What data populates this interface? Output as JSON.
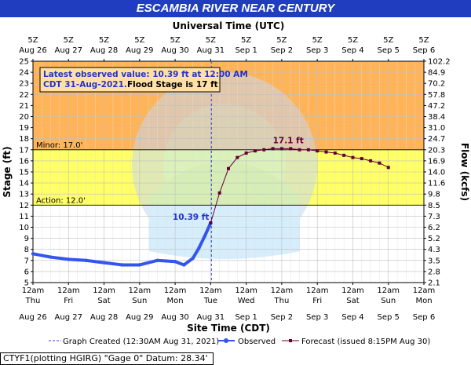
{
  "page_title": "ESCAMBIA RIVER NEAR CENTURY",
  "utc_axis_title": "Universal Time (UTC)",
  "site_axis_title": "Site Time (CDT)",
  "ylabel_left": "Stage (ft)",
  "ylabel_right": "Flow (kcfs)",
  "info_box": {
    "observed_line1": "Latest observed value: 10.39 ft at 12:00 AM",
    "observed_line2": "CDT 31-Aug-2021.",
    "flood_stage": "Flood Stage is 17 ft"
  },
  "stage_bands": {
    "minor_label": "Minor: 17.0'",
    "action_label": "Action: 12.0'",
    "minor_stage": 17,
    "action_stage": 12,
    "moderate_color": "#ffb45a",
    "minor_color": "#ffff66",
    "action_color": "#ffffff"
  },
  "legend": {
    "created": "Graph Created (12:30AM Aug 31, 2021)",
    "observed": "Observed",
    "forecast": "Forecast (issued 8:15PM Aug 30)"
  },
  "footer": "CTYF1(plotting HGIRG) \"Gage 0\" Datum: 28.34'",
  "colors": {
    "title_bar": "#1f3dbe",
    "observed": "#3355ee",
    "forecast": "#660033"
  },
  "chart_data": {
    "type": "line",
    "xlim": [
      "2021-08-26T00:00 CDT",
      "2021-09-06T00:00 CDT"
    ],
    "ylim": [
      5,
      25
    ],
    "grid": true,
    "x_ticks_utc": [
      {
        "time": "5Z",
        "date": "Aug 26"
      },
      {
        "time": "5Z",
        "date": "Aug 27"
      },
      {
        "time": "5Z",
        "date": "Aug 28"
      },
      {
        "time": "5Z",
        "date": "Aug 29"
      },
      {
        "time": "5Z",
        "date": "Aug 30"
      },
      {
        "time": "5Z",
        "date": "Aug 31"
      },
      {
        "time": "5Z",
        "date": "Sep 1"
      },
      {
        "time": "5Z",
        "date": "Sep 2"
      },
      {
        "time": "5Z",
        "date": "Sep 3"
      },
      {
        "time": "5Z",
        "date": "Sep 4"
      },
      {
        "time": "5Z",
        "date": "Sep 5"
      },
      {
        "time": "5Z",
        "date": "Sep 6"
      }
    ],
    "x_ticks_site": [
      {
        "time": "12am",
        "day": "Thu",
        "date": "Aug 26"
      },
      {
        "time": "12am",
        "day": "Fri",
        "date": "Aug 27"
      },
      {
        "time": "12am",
        "day": "Sat",
        "date": "Aug 28"
      },
      {
        "time": "12am",
        "day": "Sun",
        "date": "Aug 29"
      },
      {
        "time": "12am",
        "day": "Mon",
        "date": "Aug 30"
      },
      {
        "time": "12am",
        "day": "Tue",
        "date": "Aug 31"
      },
      {
        "time": "12am",
        "day": "Wed",
        "date": "Sep 1"
      },
      {
        "time": "12am",
        "day": "Thu",
        "date": "Sep 2"
      },
      {
        "time": "12am",
        "day": "Fri",
        "date": "Sep 3"
      },
      {
        "time": "12am",
        "day": "Sat",
        "date": "Sep 4"
      },
      {
        "time": "12am",
        "day": "Sun",
        "date": "Sep 5"
      },
      {
        "time": "12am",
        "day": "Mon",
        "date": "Sep 6"
      }
    ],
    "y_ticks_left": [
      "5",
      "6",
      "7",
      "8",
      "9",
      "10",
      "11",
      "12",
      "13",
      "14",
      "15",
      "16",
      "17",
      "18",
      "19",
      "20",
      "21",
      "22",
      "23",
      "24",
      "25"
    ],
    "y_ticks_right": [
      "2.1",
      "2.8",
      "3.5",
      "4.3",
      "5.2",
      "6.2",
      "7.3",
      "8.5",
      "9.8",
      "11.6",
      "14.0",
      "16.9",
      "20.3",
      "24.7",
      "31.0",
      "38.4",
      "47.2",
      "57.8",
      "70.2",
      "84.9",
      "102.2"
    ],
    "created_time": "2021-08-31T00:30 CDT",
    "series": [
      {
        "name": "Observed",
        "x": [
          "2021-08-26T00:00",
          "2021-08-26T12:00",
          "2021-08-27T00:00",
          "2021-08-27T12:00",
          "2021-08-28T00:00",
          "2021-08-28T12:00",
          "2021-08-29T00:00",
          "2021-08-29T12:00",
          "2021-08-30T00:00",
          "2021-08-30T06:00",
          "2021-08-30T12:00",
          "2021-08-30T16:00",
          "2021-08-30T20:00",
          "2021-08-31T00:00"
        ],
        "y": [
          7.6,
          7.3,
          7.1,
          7.0,
          6.8,
          6.6,
          6.6,
          7.0,
          6.9,
          6.6,
          7.2,
          8.1,
          9.2,
          10.39
        ]
      },
      {
        "name": "Forecast",
        "x": [
          "2021-08-31T00:00",
          "2021-08-31T06:00",
          "2021-08-31T12:00",
          "2021-08-31T18:00",
          "2021-09-01T00:00",
          "2021-09-01T06:00",
          "2021-09-01T12:00",
          "2021-09-01T18:00",
          "2021-09-02T00:00",
          "2021-09-02T06:00",
          "2021-09-02T12:00",
          "2021-09-02T18:00",
          "2021-09-03T00:00",
          "2021-09-03T06:00",
          "2021-09-03T12:00",
          "2021-09-03T18:00",
          "2021-09-04T00:00",
          "2021-09-04T06:00",
          "2021-09-04T12:00",
          "2021-09-04T18:00",
          "2021-09-05T00:00"
        ],
        "y": [
          10.39,
          13.1,
          15.3,
          16.3,
          16.7,
          16.9,
          17.0,
          17.1,
          17.1,
          17.1,
          17.0,
          17.0,
          16.9,
          16.8,
          16.7,
          16.5,
          16.3,
          16.2,
          16.0,
          15.8,
          15.4
        ]
      }
    ],
    "annotations": [
      {
        "text": "10.39 ft",
        "x": "2021-08-31T00:00",
        "y": 10.39
      },
      {
        "text": "17.1 ft",
        "x": "2021-09-01T18:00",
        "y": 17.1
      }
    ]
  }
}
